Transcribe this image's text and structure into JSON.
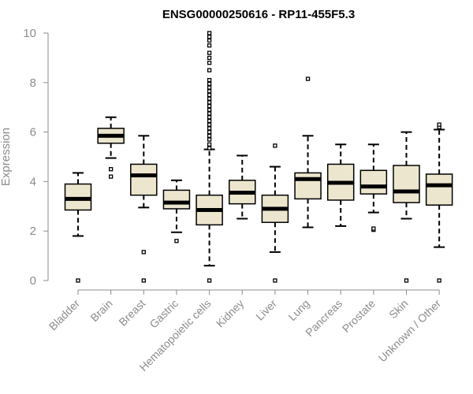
{
  "colors": {
    "box_fill": "#ede6cf",
    "box_stroke": "#000000",
    "axis": "#8c8c8c",
    "text": "#8c8c8c"
  },
  "chart_data": {
    "type": "boxplot",
    "title": "ENSG00000250616 - RP11-455F5.3",
    "xlabel": "",
    "ylabel": "Expression",
    "ylim": [
      0,
      10
    ],
    "yticks": [
      0,
      2,
      4,
      6,
      8,
      10
    ],
    "grid": false,
    "legend": "none",
    "categories": [
      "Bladder",
      "Brain",
      "Breast",
      "Gastric",
      "Hematopoietic cells",
      "Kidney",
      "Liver",
      "Lung",
      "Pancreas",
      "Prostate",
      "Skin",
      "Unknown / Other"
    ],
    "boxes": [
      {
        "name": "Bladder",
        "whisker_low": 1.8,
        "q1": 2.85,
        "median": 3.3,
        "q3": 3.9,
        "whisker_high": 4.35,
        "outliers": [
          0.0
        ]
      },
      {
        "name": "Brain",
        "whisker_low": 4.95,
        "q1": 5.55,
        "median": 5.85,
        "q3": 6.15,
        "whisker_high": 6.6,
        "outliers": [
          4.2,
          4.5
        ]
      },
      {
        "name": "Breast",
        "whisker_low": 2.95,
        "q1": 3.45,
        "median": 4.25,
        "q3": 4.7,
        "whisker_high": 5.85,
        "outliers": [
          0.0,
          1.15
        ]
      },
      {
        "name": "Gastric",
        "whisker_low": 1.95,
        "q1": 2.9,
        "median": 3.15,
        "q3": 3.65,
        "whisker_high": 4.05,
        "outliers": [
          1.6
        ]
      },
      {
        "name": "Hematopoietic cells",
        "whisker_low": 0.6,
        "q1": 2.25,
        "median": 2.85,
        "q3": 3.45,
        "whisker_high": 5.3,
        "outliers": [
          0.0,
          5.35,
          5.5,
          5.7,
          5.85,
          6.0,
          6.15,
          6.3,
          6.45,
          6.6,
          6.75,
          6.9,
          7.05,
          7.2,
          7.35,
          7.5,
          7.65,
          7.8,
          7.95,
          8.1,
          8.5,
          8.8,
          9.0,
          9.2,
          9.5,
          9.7,
          9.85,
          10.0
        ]
      },
      {
        "name": "Kidney",
        "whisker_low": 2.5,
        "q1": 3.1,
        "median": 3.55,
        "q3": 4.05,
        "whisker_high": 5.05,
        "outliers": []
      },
      {
        "name": "Liver",
        "whisker_low": 1.15,
        "q1": 2.35,
        "median": 2.9,
        "q3": 3.45,
        "whisker_high": 4.6,
        "outliers": [
          0.0,
          5.45
        ]
      },
      {
        "name": "Lung",
        "whisker_low": 2.15,
        "q1": 3.3,
        "median": 4.1,
        "q3": 4.35,
        "whisker_high": 5.85,
        "outliers": [
          8.15
        ]
      },
      {
        "name": "Pancreas",
        "whisker_low": 2.2,
        "q1": 3.25,
        "median": 3.95,
        "q3": 4.7,
        "whisker_high": 5.5,
        "outliers": []
      },
      {
        "name": "Prostate",
        "whisker_low": 2.75,
        "q1": 3.5,
        "median": 3.8,
        "q3": 4.45,
        "whisker_high": 5.5,
        "outliers": [
          2.05,
          2.1
        ]
      },
      {
        "name": "Skin",
        "whisker_low": 2.5,
        "q1": 3.15,
        "median": 3.6,
        "q3": 4.65,
        "whisker_high": 6.0,
        "outliers": [
          0.0
        ]
      },
      {
        "name": "Unknown / Other",
        "whisker_low": 1.35,
        "q1": 3.05,
        "median": 3.85,
        "q3": 4.3,
        "whisker_high": 6.1,
        "outliers": [
          0.0,
          6.2,
          6.3
        ]
      }
    ]
  }
}
